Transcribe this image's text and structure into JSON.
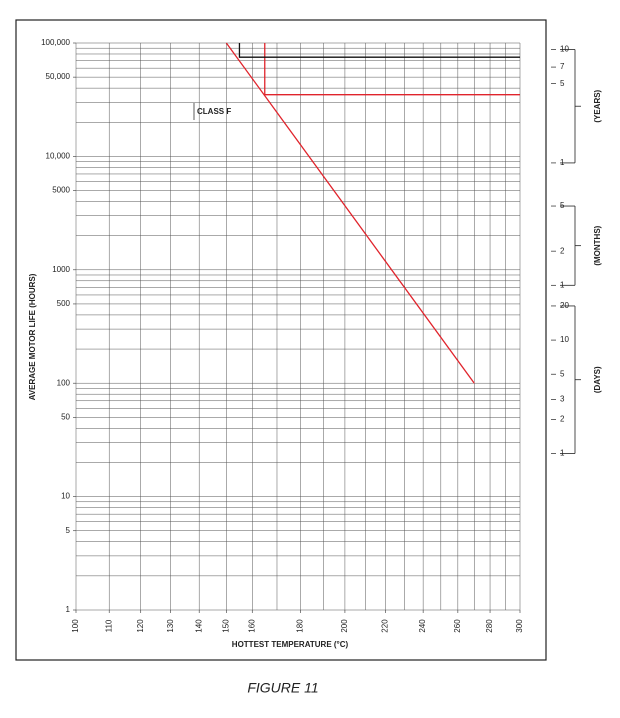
{
  "chart_data": {
    "type": "line",
    "caption": "FIGURE 11",
    "xlabel": "HOTTEST TEMPERATURE (°C)",
    "ylabel": "AVERAGE MOTOR LIFE (HOURS)",
    "annotation": "CLASS F",
    "xscale": "reciprocal-kelvin",
    "yscale": "log",
    "xlim": [
      100,
      300
    ],
    "ylim": [
      1,
      100000
    ],
    "xticks": [
      100,
      110,
      120,
      130,
      140,
      150,
      160,
      180,
      200,
      220,
      240,
      260,
      280,
      300
    ],
    "xgrid": [
      100,
      110,
      120,
      130,
      140,
      150,
      160,
      170,
      180,
      190,
      200,
      210,
      220,
      230,
      240,
      250,
      260,
      270,
      280,
      290,
      300
    ],
    "yticks": [
      1,
      5,
      10,
      50,
      100,
      500,
      1000,
      5000,
      {
        "value": 10000,
        "label": "10,000"
      },
      {
        "value": 50000,
        "label": "50,000"
      },
      {
        "value": 100000,
        "label": "100,000"
      }
    ],
    "ygrid": [
      1,
      2,
      3,
      4,
      5,
      6,
      7,
      8,
      9,
      10,
      20,
      30,
      40,
      50,
      60,
      70,
      80,
      90,
      100,
      200,
      300,
      400,
      500,
      600,
      700,
      800,
      900,
      1000,
      2000,
      3000,
      4000,
      5000,
      6000,
      7000,
      8000,
      9000,
      10000,
      20000,
      30000,
      40000,
      50000,
      60000,
      70000,
      80000,
      90000,
      100000
    ],
    "series": [
      {
        "color": "#e0242c",
        "x": [
          150,
          270
        ],
        "values": [
          100000,
          100
        ]
      },
      {
        "color": "#e0242c",
        "x": [
          165,
          165,
          300
        ],
        "values": [
          100000,
          35000,
          35000
        ]
      },
      {
        "color": "#111111",
        "x": [
          155,
          155,
          300
        ],
        "values": [
          100000,
          75000,
          75000
        ]
      }
    ],
    "y2groups": [
      {
        "name": "(YEARS)",
        "ticks": [
          {
            "value": 87600,
            "label": "10"
          },
          {
            "value": 61320,
            "label": "7"
          },
          {
            "value": 43800,
            "label": "5"
          },
          {
            "value": 8760,
            "label": "1"
          }
        ]
      },
      {
        "name": "(MONTHS)",
        "ticks": [
          {
            "value": 3650,
            "label": "5"
          },
          {
            "value": 1460,
            "label": "2"
          },
          {
            "value": 730,
            "label": "1"
          }
        ]
      },
      {
        "name": "(DAYS)",
        "ticks": [
          {
            "value": 480,
            "label": "20"
          },
          {
            "value": 240,
            "label": "10"
          },
          {
            "value": 120,
            "label": "5"
          },
          {
            "value": 72,
            "label": "3"
          },
          {
            "value": 48,
            "label": "2"
          },
          {
            "value": 24,
            "label": "1"
          }
        ]
      }
    ],
    "grid": true
  }
}
